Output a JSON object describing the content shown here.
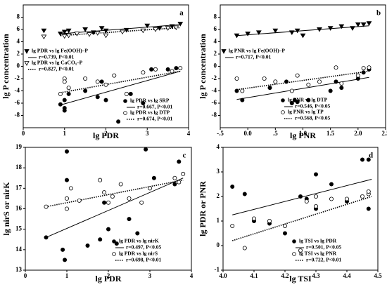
{
  "chart_data": [
    {
      "type": "scatter",
      "panel": "a",
      "xlabel": "lg PDR",
      "ylabel": "lg P concentration",
      "xlim": [
        0,
        4
      ],
      "xticks": [
        0,
        1,
        2,
        3,
        4
      ],
      "ylim": [
        -10,
        10
      ],
      "yticks": [
        -8,
        -6,
        -4,
        -2,
        0,
        2,
        4,
        6,
        8
      ],
      "series": [
        {
          "name": "lg PDR vs lg Fe(OOH)–P",
          "stat": "r=0.739, P<0.01",
          "marker": "triangle-filled",
          "dash": "solid",
          "color": "#000000",
          "x": [
            0.5,
            0.9,
            1.0,
            1.0,
            1.1,
            1.5,
            1.7,
            1.9,
            2.0,
            2.5,
            3.0,
            3.3,
            3.6,
            3.8
          ],
          "values": [
            5.8,
            5.3,
            5.0,
            5.6,
            5.8,
            6.0,
            5.5,
            6.2,
            5.8,
            5.9,
            6.6,
            6.2,
            6.5,
            6.9
          ],
          "fit": {
            "x": [
              0.9,
              3.8
            ],
            "y": [
              5.3,
              6.8
            ]
          }
        },
        {
          "name": "lg PDR vs lg CaCO₃–P",
          "stat": "r=0.827, P<0.01",
          "marker": "triangle-open",
          "dash": "dotted",
          "color": "#000000",
          "x": [
            0.5,
            1.0,
            1.1,
            1.3,
            1.6,
            1.8,
            2.0,
            2.4,
            2.9,
            3.2,
            3.5,
            3.7
          ],
          "values": [
            4.8,
            4.9,
            5.0,
            5.3,
            5.2,
            5.4,
            5.0,
            5.6,
            5.8,
            6.0,
            6.2,
            6.3
          ],
          "fit": {
            "x": [
              0.9,
              3.8
            ],
            "y": [
              5.0,
              6.3
            ]
          }
        },
        {
          "name": "lg PDR vs lg SRP",
          "stat": "r=0.667, P<0.01",
          "marker": "circle-filled",
          "dash": "solid",
          "color": "#000000",
          "x": [
            0.9,
            1.0,
            1.0,
            1.0,
            1.1,
            1.5,
            1.8,
            1.9,
            2.0,
            2.3,
            2.6,
            2.9,
            3.1,
            3.5,
            3.7
          ],
          "values": [
            -6.2,
            -7.2,
            -6.8,
            -5.5,
            -4.5,
            -4.0,
            -5.0,
            -2.5,
            -5.5,
            -9.0,
            -4.5,
            -6.0,
            -0.5,
            -0.5,
            -0.3
          ],
          "fit": {
            "x": [
              0.9,
              3.8
            ],
            "y": [
              -6.3,
              -0.8
            ]
          }
        },
        {
          "name": "lg PDR vs lg DTP",
          "stat": "r=0.674, P<0.01",
          "marker": "circle-open",
          "dash": "dotted",
          "color": "#000000",
          "x": [
            0.9,
            1.0,
            1.0,
            1.1,
            1.5,
            1.8,
            2.0,
            2.2,
            2.5,
            2.9,
            3.2,
            3.6,
            3.8
          ],
          "values": [
            -4.5,
            -2.0,
            -2.5,
            -3.5,
            -2.0,
            -2.5,
            -3.0,
            -1.5,
            -4.5,
            -1.0,
            -0.5,
            -0.8,
            -0.3
          ],
          "fit": {
            "x": [
              0.9,
              3.8
            ],
            "y": [
              -4.3,
              -0.8
            ]
          }
        }
      ]
    },
    {
      "type": "scatter",
      "panel": "b",
      "xlabel": "lg PNR",
      "ylabel": "lg P concentration",
      "xlim": [
        -0.5,
        2.5
      ],
      "xticks": [
        {
          "value": -0.5,
          "label": "-.5"
        },
        {
          "value": 0,
          "label": "0.0"
        },
        {
          "value": 0.5,
          "label": ".5"
        },
        {
          "value": 1,
          "label": "1.0"
        },
        {
          "value": 1.5,
          "label": "1.5"
        },
        {
          "value": 2,
          "label": "2.0"
        },
        {
          "value": 2.5,
          "label": "2.5"
        }
      ],
      "ylim": [
        -10,
        10
      ],
      "yticks": [
        -8,
        -6,
        -4,
        -2,
        0,
        2,
        4,
        6,
        8
      ],
      "series": [
        {
          "name": "lg PNR vs lg Fe(OOH)–P",
          "stat": "r=0.717, P<0.01",
          "marker": "triangle-filled",
          "dash": "solid",
          "color": "#000000",
          "x": [
            -0.2,
            0,
            0.2,
            0.5,
            0.8,
            0.9,
            1.0,
            1.3,
            1.5,
            1.7,
            1.9,
            2.0,
            2.1,
            2.2
          ],
          "values": [
            5.0,
            5.3,
            5.5,
            5.8,
            5.5,
            5.8,
            5.0,
            6.0,
            6.2,
            6.5,
            6.2,
            6.8,
            6.8,
            7.0
          ],
          "fit": {
            "x": [
              -0.2,
              2.2
            ],
            "y": [
              5.0,
              6.6
            ]
          }
        },
        {
          "name": "lg PNR vs lg DTP",
          "stat": "r=0.546, P<0.05",
          "marker": "circle-filled",
          "dash": "solid",
          "color": "#000000",
          "x": [
            -0.2,
            -0.1,
            0.4,
            0.7,
            0.8,
            0.85,
            0.9,
            1.1,
            1.5,
            1.6,
            1.7,
            2.0,
            2.1,
            2.2
          ],
          "values": [
            -4.0,
            -5.5,
            -3.5,
            -2.5,
            -6.0,
            -5.5,
            -5.8,
            -5.5,
            -4.0,
            -2.5,
            -3.5,
            -2.0,
            -1.0,
            -0.5
          ],
          "fit": {
            "x": [
              -0.2,
              2.2
            ],
            "y": [
              -5.4,
              -1.8
            ]
          }
        },
        {
          "name": "lg PNR vs lg TP",
          "stat": "r=0.568, P<0.05",
          "marker": "circle-open",
          "dash": "dotted",
          "color": "#000000",
          "x": [
            -0.2,
            -0.1,
            0.3,
            0.5,
            0.8,
            0.9,
            1.1,
            1.3,
            1.6,
            1.7,
            2.0,
            2.1,
            2.2
          ],
          "values": [
            -2.0,
            -4.0,
            -2.0,
            -2.5,
            -4.0,
            -1.5,
            -3.0,
            -2.5,
            -0.2,
            -2.8,
            -1.5,
            -0.3,
            -0.2
          ],
          "fit": {
            "x": [
              -0.2,
              2.2
            ],
            "y": [
              -3.8,
              -0.8
            ]
          }
        }
      ]
    },
    {
      "type": "scatter",
      "panel": "c",
      "xlabel": "lg PDR",
      "ylabel": "lg nirS or nirK",
      "xlim": [
        0,
        4
      ],
      "xticks": [
        0,
        1,
        2,
        3,
        4
      ],
      "ylim": [
        13,
        19
      ],
      "yticks": [
        13,
        14,
        15,
        16,
        17,
        18,
        19
      ],
      "series": [
        {
          "name": "lg PDR vs lg nirK",
          "stat": "r=0.497, P<0.05",
          "marker": "circle-filled",
          "dash": "solid",
          "color": "#000000",
          "x": [
            0.5,
            0.9,
            0.95,
            1.0,
            1.0,
            1.5,
            1.8,
            1.9,
            2.0,
            2.2,
            2.5,
            2.7,
            2.9,
            3.1,
            3.6,
            3.7
          ],
          "values": [
            14.6,
            14.0,
            13.5,
            18.8,
            17.4,
            14.2,
            14.5,
            16.3,
            15.0,
            14.3,
            15.5,
            14.8,
            18.9,
            17.5,
            17.2,
            18.3
          ],
          "fit": {
            "x": [
              0.5,
              3.8
            ],
            "y": [
              14.6,
              17.5
            ]
          }
        },
        {
          "name": "lg PDR vs lg nirS",
          "stat": "r=0.698, P<0.01",
          "marker": "circle-open",
          "dash": "dotted",
          "color": "#000000",
          "x": [
            0.5,
            1.0,
            1.0,
            1.1,
            1.3,
            1.8,
            1.9,
            2.0,
            2.1,
            2.3,
            2.5,
            2.8,
            3.0,
            3.6,
            3.7,
            3.8
          ],
          "values": [
            16.1,
            16.0,
            16.5,
            17.0,
            16.4,
            17.4,
            16.8,
            16.3,
            16.6,
            17.2,
            16.5,
            16.3,
            17.0,
            17.5,
            17.3,
            17.7
          ],
          "fit": {
            "x": [
              0.5,
              3.8
            ],
            "y": [
              16.1,
              17.4
            ]
          }
        }
      ]
    },
    {
      "type": "scatter",
      "panel": "d",
      "xlabel": "lg TSI",
      "ylabel": "lg PDR or PNR",
      "xlim": [
        4.0,
        4.5
      ],
      "xticks": [
        {
          "value": 4.0,
          "label": "4.0"
        },
        4.1,
        4.2,
        4.3,
        4.4,
        4.5
      ],
      "ylim": [
        -1,
        4
      ],
      "yticks": [
        -1,
        0,
        1,
        2,
        3,
        4
      ],
      "series": [
        {
          "name": "lg TSI vs lg PDR",
          "stat": "r=0.501, P<0.05",
          "marker": "circle-filled",
          "dash": "solid",
          "color": "#000000",
          "x": [
            4.03,
            4.07,
            4.1,
            4.15,
            4.2,
            4.25,
            4.27,
            4.3,
            4.3,
            4.35,
            4.4,
            4.45,
            4.47,
            4.47
          ],
          "values": [
            2.4,
            2.1,
            1.0,
            0.9,
            0.5,
            2.0,
            1.9,
            2.9,
            1.5,
            2.5,
            1.8,
            3.5,
            3.5,
            1.5
          ],
          "fit": {
            "x": [
              4.03,
              4.48
            ],
            "y": [
              1.25,
              2.7
            ]
          }
        },
        {
          "name": "lg TSI vs lg PNR",
          "stat": "r=0.722, P<0.01",
          "marker": "circle-open",
          "dash": "dotted",
          "color": "#000000",
          "x": [
            4.03,
            4.07,
            4.1,
            4.15,
            4.2,
            4.25,
            4.27,
            4.3,
            4.3,
            4.35,
            4.4,
            4.45,
            4.47,
            4.47
          ],
          "values": [
            0.8,
            -0.1,
            1.1,
            1.0,
            0.8,
            -0.2,
            1.8,
            1.6,
            2.0,
            1.9,
            1.9,
            2.0,
            2.1,
            2.2
          ],
          "fit": {
            "x": [
              4.03,
              4.48
            ],
            "y": [
              0.2,
              2.0
            ]
          }
        }
      ]
    }
  ]
}
